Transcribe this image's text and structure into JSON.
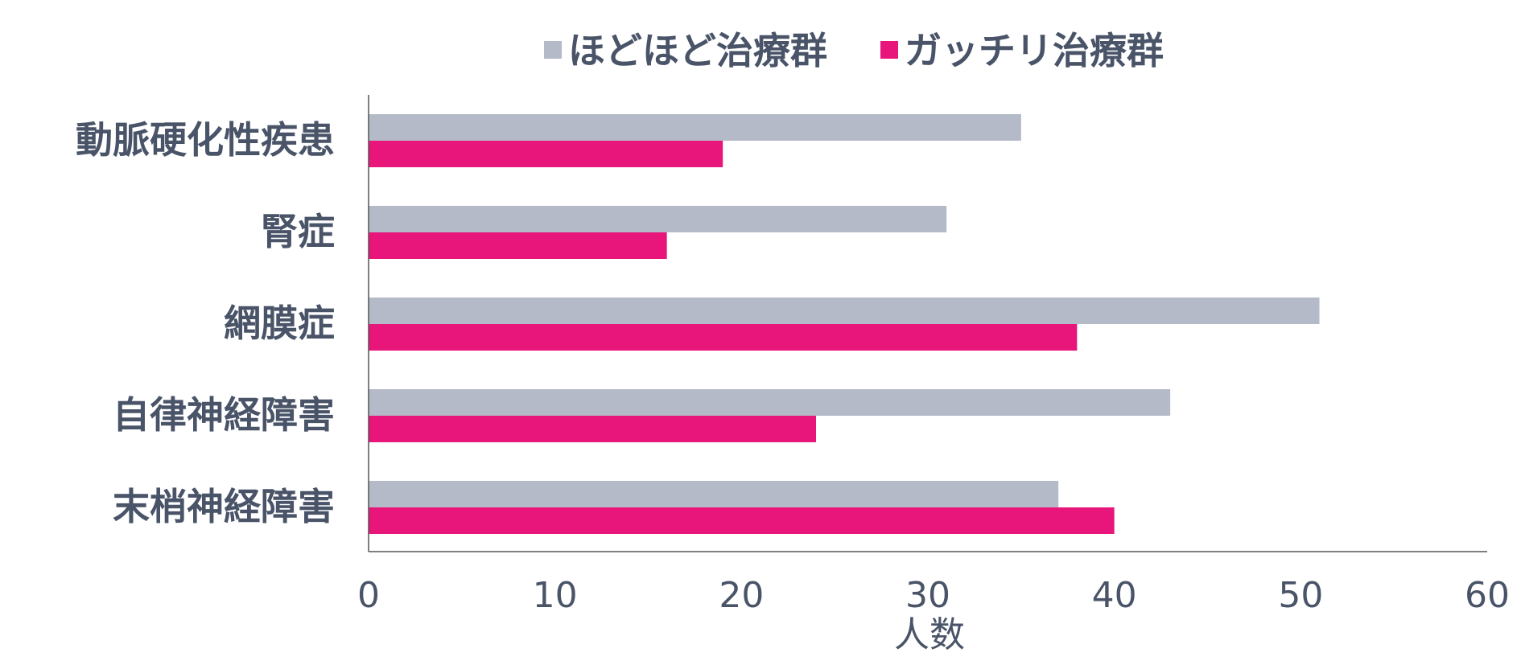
{
  "chart_data": {
    "type": "bar",
    "orientation": "horizontal",
    "categories": [
      "動脈硬化性疾患",
      "腎症",
      "網膜症",
      "自律神経障害",
      "末梢神経障害"
    ],
    "series": [
      {
        "name": "ほどほど治療群",
        "color": "#b4bac8",
        "values": [
          35,
          31,
          51,
          43,
          37
        ]
      },
      {
        "name": "ガッチリ治療群",
        "color": "#e8157a",
        "values": [
          19,
          16,
          38,
          24,
          40
        ]
      }
    ],
    "x_ticks": [
      0,
      10,
      20,
      30,
      40,
      50,
      60
    ],
    "xlim": [
      0,
      60
    ],
    "xlabel": "人数",
    "ylabel": "",
    "title": "",
    "grid": false,
    "legend_position": "top-center",
    "colors": {
      "text": "#4a5468",
      "axis": "#555555"
    }
  }
}
